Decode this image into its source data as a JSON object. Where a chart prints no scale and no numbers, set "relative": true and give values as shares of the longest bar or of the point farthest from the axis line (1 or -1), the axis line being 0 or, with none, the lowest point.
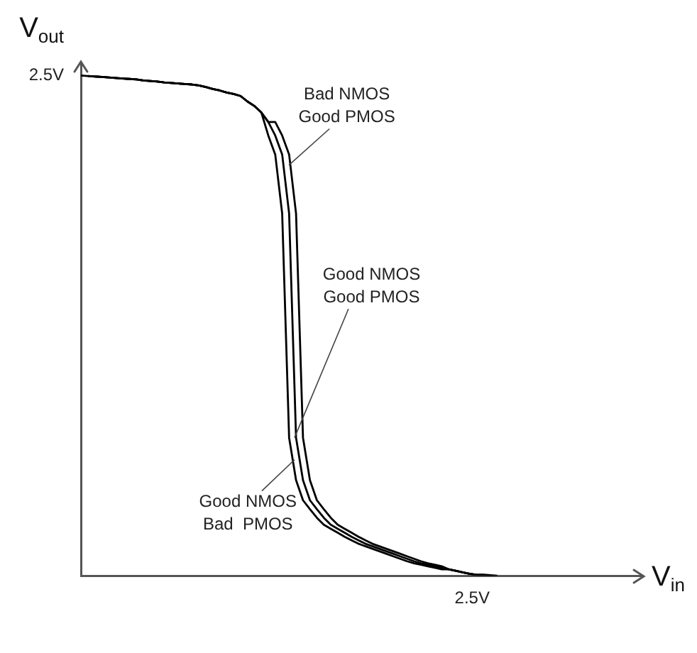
{
  "chart_data": {
    "type": "line",
    "relative": true,
    "xlabel": "V$_{in}$",
    "ylabel": "V$_{out}$",
    "legend": false,
    "marker": "none",
    "line_style": "solid",
    "categories": [
      null,
      null,
      null,
      null,
      null,
      null,
      null,
      null,
      null,
      null,
      null,
      null,
      null,
      null,
      null,
      null,
      null,
      null,
      null,
      null,
      null,
      null,
      null,
      null,
      null,
      null,
      null,
      null,
      null,
      null,
      null,
      null,
      null,
      null,
      null,
      null,
      null,
      null,
      null,
      null,
      null,
      null,
      null,
      null,
      null,
      null,
      null,
      null,
      null,
      null,
      null,
      null,
      null,
      null,
      null,
      null,
      null,
      null,
      null,
      null,
      null,
      null,
      null,
      null,
      null,
      null,
      null,
      null,
      null,
      null,
      null,
      null,
      null,
      null,
      null,
      null,
      null,
      null,
      null,
      null,
      null,
      null
    ],
    "series": [
      {
        "color": "#000000",
        "values": [
          1,
          0.999,
          0.998,
          0.997,
          0.996,
          0.995,
          0.994,
          0.993,
          0.992,
          0.99,
          0.989,
          0.988,
          0.986,
          0.985,
          0.984,
          0.983,
          0.982,
          0.98,
          0.977,
          0.973,
          0.97,
          0.966,
          0.963,
          0.959,
          0.948,
          0.939,
          0.926,
          0.907,
          0.907,
          0.88,
          0.842,
          0.724,
          0.276,
          0.191,
          0.151,
          0.133,
          0.116,
          0.102,
          0.094,
          0.086,
          0.078,
          0.071,
          0.064,
          0.059,
          0.054,
          0.049,
          0.044,
          0.039,
          0.034,
          0.029,
          0.025,
          0.022,
          0.019,
          0.013,
          0.01,
          0.007,
          0.004,
          0.002,
          0.002,
          0.001,
          0,
          null,
          null,
          null,
          null,
          null,
          null,
          null,
          null,
          null,
          null,
          null,
          null,
          null,
          null,
          null,
          null,
          null,
          null,
          null,
          null,
          null
        ]
      },
      {
        "color": "#000000",
        "values": [
          null,
          0.999,
          0.998,
          0.997,
          0.996,
          0.995,
          0.994,
          0.993,
          0.992,
          0.99,
          0.989,
          0.988,
          0.986,
          0.985,
          0.984,
          0.983,
          0.982,
          0.98,
          0.977,
          0.973,
          0.97,
          0.966,
          0.963,
          0.959,
          0.948,
          0.939,
          0.926,
          0.907,
          0.88,
          0.842,
          0.724,
          0.276,
          0.191,
          0.151,
          0.133,
          0.116,
          0.102,
          0.094,
          0.086,
          0.078,
          0.071,
          0.064,
          0.059,
          0.054,
          0.049,
          0.044,
          0.039,
          0.034,
          0.029,
          0.025,
          0.022,
          0.019,
          0.016,
          0.013,
          0.01,
          0.007,
          0.004,
          0.002,
          0.002,
          0.001,
          null,
          null,
          null,
          null,
          null,
          null,
          null,
          null,
          null,
          null,
          null,
          null,
          null,
          null,
          null,
          null,
          null,
          null,
          null,
          null,
          null,
          null
        ]
      },
      {
        "color": "#000000",
        "values": [
          null,
          null,
          0.998,
          0.997,
          0.996,
          0.995,
          0.994,
          0.993,
          0.992,
          0.99,
          0.989,
          0.988,
          0.986,
          0.985,
          0.984,
          0.983,
          0.982,
          0.98,
          0.977,
          0.973,
          0.97,
          0.966,
          0.963,
          0.959,
          0.948,
          0.939,
          0.926,
          0.88,
          0.842,
          0.724,
          0.276,
          0.191,
          0.151,
          0.133,
          0.116,
          0.102,
          0.094,
          0.086,
          0.078,
          0.071,
          0.064,
          0.059,
          0.054,
          0.049,
          0.044,
          0.039,
          0.034,
          0.029,
          0.025,
          0.022,
          0.019,
          0.016,
          0.013,
          0.013,
          0.01,
          0.007,
          0.004,
          0.002,
          0.002,
          null,
          null,
          null,
          null,
          null,
          null,
          null,
          null,
          null,
          null,
          null,
          null,
          null,
          null,
          null,
          null,
          null,
          null,
          null,
          null,
          null,
          null,
          null
        ]
      }
    ],
    "annotations": [
      "Bad NMOS\nGood PMOS",
      "Good NMOS\nGood PMOS",
      "Good NMOS\nBad  PMOS",
      "2.5V",
      "2.5V"
    ]
  }
}
